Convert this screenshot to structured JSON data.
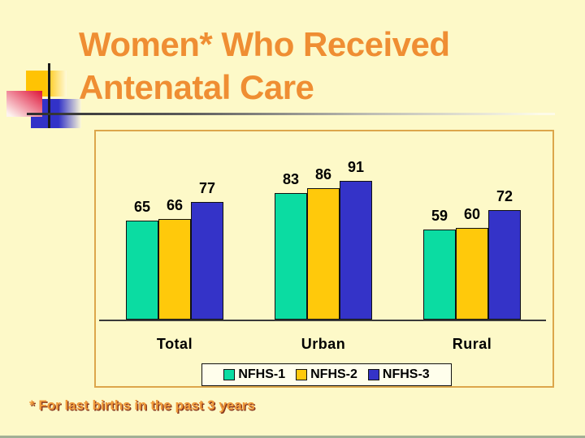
{
  "slide": {
    "title_line1": "Women* Who Received",
    "title_line2": "Antenatal Care",
    "footnote": "* For last births in the past 3 years"
  },
  "colors": {
    "background": "#FDF9C8",
    "title_text": "#EF8E33",
    "footnote_text": "#F09A3A",
    "footnote_shadow": "#8B3A1E",
    "panel_border": "#DCA64B",
    "axis_line": "#3A3A3A",
    "legend_background": "#FFFEEC"
  },
  "chart_data": {
    "type": "bar",
    "title": "",
    "xlabel": "",
    "ylabel": "",
    "categories": [
      "Total",
      "Urban",
      "Rural"
    ],
    "series": [
      {
        "name": "NFHS-1",
        "color": "#0BDCA2",
        "values": [
          65,
          83,
          59
        ]
      },
      {
        "name": "NFHS-2",
        "color": "#FFC90B",
        "values": [
          66,
          86,
          60
        ]
      },
      {
        "name": "NFHS-3",
        "color": "#3433C8",
        "values": [
          77,
          91,
          72
        ]
      }
    ],
    "ylim": [
      0,
      125
    ],
    "data_labels": true,
    "grid": false,
    "legend_position": "bottom"
  }
}
